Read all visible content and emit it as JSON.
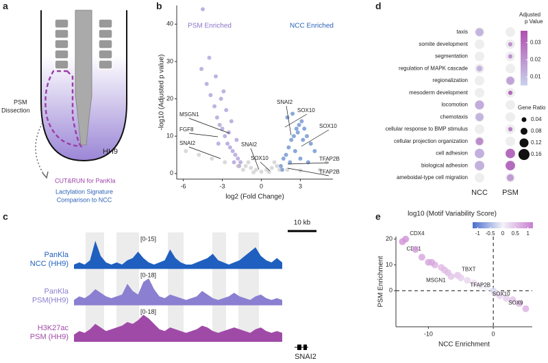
{
  "panel_labels": [
    "a",
    "b",
    "c",
    "d",
    "e"
  ],
  "diagram": {
    "dissection": [
      "PSM",
      "Dissection"
    ],
    "stage": "HH9",
    "step": "CUT&RUN for PanKla",
    "comparison": [
      "Lactylation Signature",
      "Comparison to NCC"
    ]
  },
  "chart_data": [
    {
      "type": "scatter",
      "xlabel": "log2 (Fold Change)",
      "ylabel": "-log10 (Adjusted p value)",
      "xlim": [
        -6.5,
        5.5
      ],
      "xticks": [
        -6,
        -3,
        0,
        3
      ],
      "ylim": [
        -1.5,
        45
      ],
      "yticks": [
        0,
        10,
        20,
        30,
        40
      ],
      "series": [
        {
          "name": "PSM Enriched",
          "color": "#8b74c8",
          "x": [
            -4.5,
            -4.6,
            -4.2,
            -3.9,
            -3.6,
            -3.4,
            -3.2,
            -3.0,
            -2.8,
            -2.6,
            -2.4,
            -2.2,
            -2.0,
            -1.8,
            -1.6,
            -3.1,
            -2.7,
            -2.3,
            -1.9,
            -3.5,
            -2.9,
            -2.5,
            -2.1,
            -1.7,
            -4.0,
            -3.3
          ],
          "values": [
            44,
            28,
            24,
            21,
            18,
            15,
            13,
            12,
            10,
            8,
            7,
            6,
            5,
            4,
            3,
            20,
            17,
            14,
            9,
            26,
            22,
            11,
            3,
            2,
            31,
            8
          ]
        },
        {
          "name": "NCC Enriched",
          "color": "#2c62b8",
          "x": [
            1.5,
            1.7,
            1.9,
            2.1,
            2.3,
            2.5,
            2.7,
            2.9,
            3.1,
            3.3,
            3.5,
            3.8,
            4.1,
            2.0,
            2.4,
            2.8,
            3.2,
            1.6,
            2.2,
            2.6,
            3.0,
            3.6
          ],
          "values": [
            2,
            4,
            5,
            7,
            9,
            10,
            12,
            13,
            14,
            12,
            10,
            8,
            6,
            15,
            16,
            11,
            9,
            1,
            3,
            6,
            4,
            3
          ]
        },
        {
          "color": "#bbbbbb",
          "x": [
            -5.8,
            -4.8,
            -3.8,
            -2.8,
            -1.8,
            -1.2,
            -0.8,
            -0.4,
            0,
            0.4,
            0.8,
            1.2,
            2.0,
            3.0,
            4.5,
            5.0,
            -1.0,
            1.0,
            -0.6,
            0.6,
            -1.4,
            1.4
          ],
          "values": [
            6,
            5,
            4,
            3,
            2,
            2,
            1.5,
            1,
            0.5,
            1,
            1.5,
            2,
            1,
            0.8,
            1,
            3,
            3,
            3,
            0.3,
            0.4,
            1,
            1
          ]
        }
      ],
      "annotations": [
        "MSGN1",
        "FGF8",
        "SNAI2",
        "SNAI2",
        "SOX10",
        "SNAI2",
        "SOX10",
        "SOX10",
        "TFAP2B",
        "TFAP2B"
      ]
    },
    {
      "type": "dot",
      "categories": [
        "taxis",
        "somite development",
        "segmentation",
        "regulation of MAPK cascade",
        "regionalization",
        "mesoderm development",
        "locomotion",
        "chemotaxis",
        "cellular response to BMP stimulus",
        "cellular projection organization",
        "cell adhesion",
        "biological adhesion",
        "ameboidal-type cell migration"
      ],
      "series": [
        {
          "name": "NCC",
          "values": [
            0.012,
            null,
            null,
            0.012,
            null,
            null,
            0.014,
            0.012,
            null,
            0.022,
            0.013,
            0.013,
            null
          ],
          "sizes": [
            0.1,
            null,
            null,
            0.06,
            null,
            null,
            0.12,
            0.1,
            null,
            0.09,
            0.13,
            0.13,
            null
          ]
        },
        {
          "name": "PSM",
          "values": [
            null,
            0.02,
            0.02,
            null,
            0.016,
            0.03,
            null,
            null,
            0.025,
            null,
            0.03,
            0.03,
            0.018
          ],
          "sizes": [
            null,
            0.03,
            0.03,
            null,
            0.1,
            0.03,
            null,
            null,
            0.03,
            null,
            0.13,
            0.13,
            0.08
          ]
        }
      ],
      "color_label": [
        "Adjusted",
        "p Value"
      ],
      "clim": [
        0.005,
        0.037
      ],
      "cticks": [
        0.01,
        0.02,
        0.03
      ],
      "size_label": "Gene Ratio",
      "size_ticks": [
        0.04,
        0.08,
        0.12,
        0.16
      ]
    },
    {
      "type": "track",
      "scale_bar": "10 kb",
      "gene": "SNAI2",
      "series": [
        {
          "name": [
            "PanKla",
            "NCC (HH9)"
          ],
          "range": "[0-15]",
          "ylim": [
            0,
            15
          ],
          "color": "#1f5fbf",
          "values": [
            2,
            3,
            2,
            4,
            13,
            6,
            3,
            2,
            3,
            2,
            4,
            5,
            8,
            5,
            3,
            2,
            3,
            4,
            9,
            5,
            3,
            2,
            2,
            3,
            4,
            5,
            7,
            4,
            3,
            2,
            3,
            4,
            6,
            8,
            10,
            6,
            4,
            3,
            5,
            3
          ]
        },
        {
          "name": [
            "PanKla",
            "PSM(HH9)"
          ],
          "range": "[0-18]",
          "ylim": [
            0,
            18
          ],
          "color": "#8a7fd0",
          "values": [
            3,
            5,
            4,
            6,
            9,
            7,
            5,
            4,
            5,
            6,
            12,
            8,
            6,
            13,
            15,
            9,
            5,
            4,
            6,
            5,
            4,
            3,
            4,
            5,
            8,
            6,
            4,
            3,
            4,
            5,
            7,
            5,
            4,
            3,
            5,
            6,
            4,
            3,
            4,
            3
          ]
        },
        {
          "name": [
            "H3K27ac",
            "PSM (HH9)"
          ],
          "range": "[0-18]",
          "ylim": [
            0,
            18
          ],
          "color": "#a04aa8",
          "values": [
            4,
            6,
            5,
            7,
            10,
            8,
            6,
            7,
            8,
            9,
            11,
            10,
            12,
            15,
            13,
            10,
            7,
            6,
            8,
            7,
            6,
            5,
            6,
            7,
            9,
            8,
            6,
            5,
            6,
            7,
            8,
            7,
            6,
            5,
            7,
            8,
            6,
            5,
            6,
            5
          ]
        }
      ]
    },
    {
      "type": "scatter",
      "xlabel": "NCC Enrichment",
      "ylabel": "PSM Enrichment",
      "color_label": "log10 (Motif Variability Score)",
      "xlim": [
        -15,
        6
      ],
      "xticks": [
        -10,
        0
      ],
      "ylim": [
        -14,
        21
      ],
      "yticks": [
        0,
        10,
        20
      ],
      "clim": [
        -1.2,
        1.2
      ],
      "cticks": [
        -1,
        -0.5,
        0,
        0.5,
        1
      ],
      "series": [
        {
          "x": [
            -14,
            -13.5,
            -12,
            -11,
            -10,
            -9,
            -8,
            -7,
            -6.5,
            -5.5,
            -5,
            -4,
            -3,
            -2,
            -1,
            0,
            0.5,
            1,
            2,
            3,
            4,
            5,
            -9.5,
            -7.5
          ],
          "values": [
            19,
            20,
            16,
            13,
            11,
            10,
            9,
            7,
            5.5,
            6,
            5,
            4,
            3,
            2,
            1,
            0,
            -1,
            -2,
            -3,
            -3.5,
            -5,
            -7,
            11,
            8
          ],
          "scores": [
            1,
            1,
            0.9,
            0.8,
            0.8,
            0.7,
            0.6,
            0.6,
            0.5,
            0.5,
            0.4,
            0.3,
            0.2,
            0.1,
            0,
            -0.2,
            0.2,
            0.3,
            0.4,
            0.5,
            0.6,
            0.7,
            0.8,
            0.6
          ],
          "point_labels": [
            "CDX1",
            "CDX4",
            null,
            null,
            null,
            null,
            null,
            null,
            "MSGN1",
            "TBXT",
            null,
            null,
            null,
            null,
            null,
            "TFAP2B",
            null,
            null,
            null,
            "SOX10",
            null,
            "SOX9",
            null,
            null
          ]
        }
      ]
    }
  ]
}
